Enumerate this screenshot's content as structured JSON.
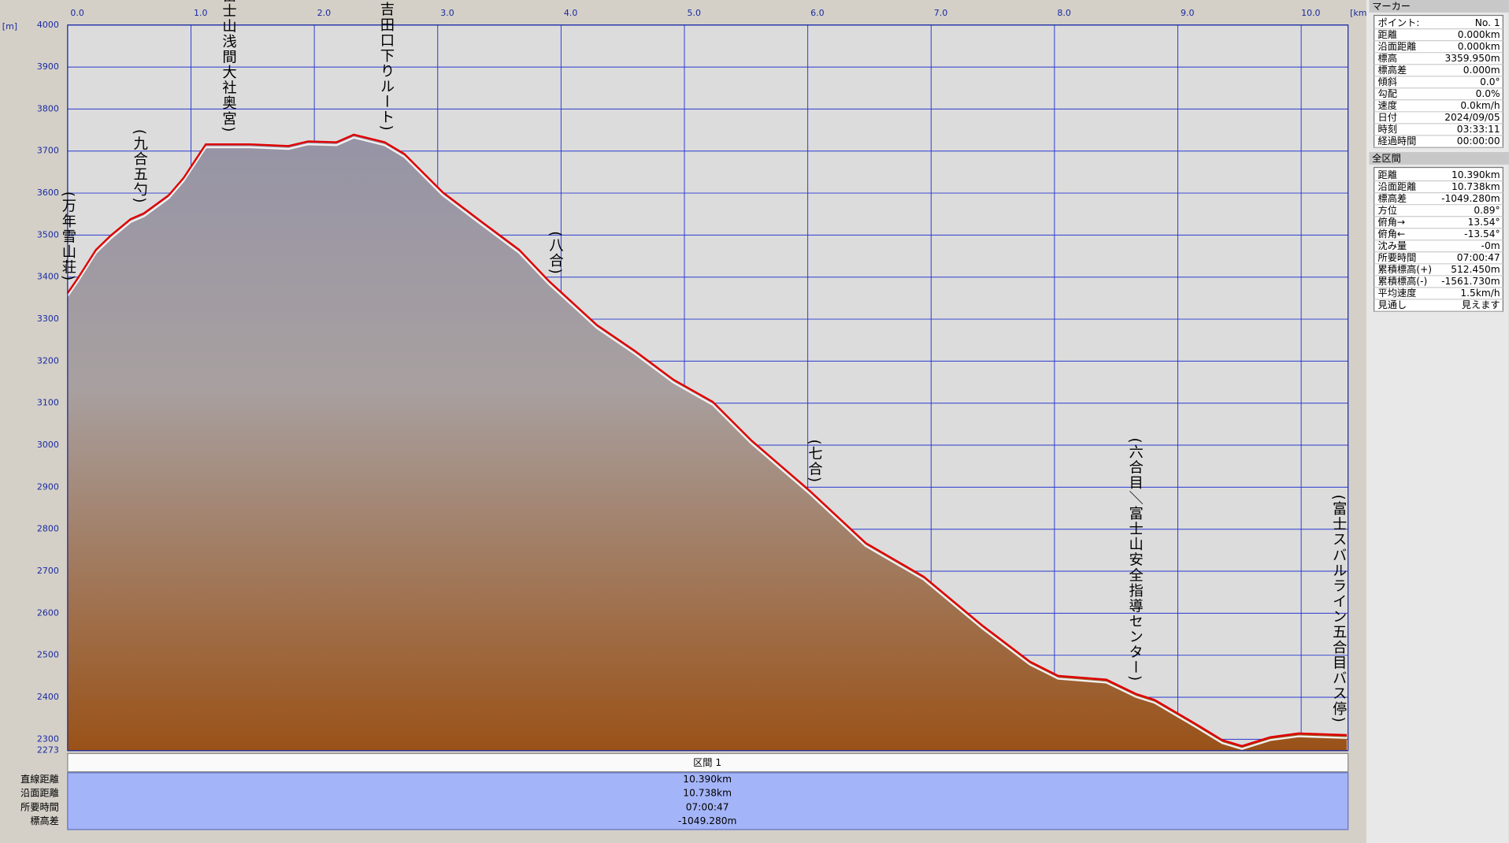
{
  "chart_data": {
    "type": "area",
    "x_label": "[km]",
    "y_label": "[m]",
    "x": [
      0,
      0.08,
      0.23,
      0.35,
      0.51,
      0.62,
      0.82,
      0.94,
      1.12,
      1.25,
      1.48,
      1.79,
      1.95,
      2.18,
      2.32,
      2.57,
      2.73,
      3.04,
      3.35,
      3.66,
      3.9,
      4.29,
      4.6,
      4.91,
      5.23,
      5.54,
      6.01,
      6.47,
      6.94,
      7.41,
      7.8,
      8.03,
      8.42,
      8.66,
      8.81,
      9.13,
      9.36,
      9.52,
      9.75,
      9.98,
      10.37
    ],
    "values": [
      3362,
      3396,
      3465,
      3499,
      3538,
      3552,
      3595,
      3636,
      3716,
      3716,
      3716,
      3712,
      3723,
      3721,
      3739,
      3721,
      3693,
      3602,
      3533,
      3465,
      3391,
      3286,
      3224,
      3156,
      3103,
      3012,
      2893,
      2767,
      2687,
      2572,
      2485,
      2451,
      2442,
      2408,
      2394,
      2339,
      2298,
      2284,
      2305,
      2314,
      2310
    ],
    "color": "#e00000",
    "xlim": [
      0,
      10.38
    ],
    "ylim": [
      2273,
      4000
    ],
    "xticks": [
      {
        "value": 0,
        "label": "0.0"
      },
      {
        "value": 1,
        "label": "1.0"
      },
      {
        "value": 2,
        "label": "2.0"
      },
      {
        "value": 3,
        "label": "3.0"
      },
      {
        "value": 4,
        "label": "4.0"
      },
      {
        "value": 5,
        "label": "5.0"
      },
      {
        "value": 6,
        "label": "6.0"
      },
      {
        "value": 7,
        "label": "7.0"
      },
      {
        "value": 8,
        "label": "8.0"
      },
      {
        "value": 9,
        "label": "9.0"
      },
      {
        "value": 10,
        "label": "10.0"
      }
    ],
    "yticks": [
      2273,
      2300,
      2400,
      2500,
      2600,
      2700,
      2800,
      2900,
      3000,
      3100,
      3200,
      3300,
      3400,
      3500,
      3600,
      3700,
      3800,
      3900,
      4000
    ],
    "grid": true,
    "annotations": [
      {
        "text": "(万年雪山荘)",
        "x": 0
      },
      {
        "text": "(九合五勺)",
        "x": 0.58
      },
      {
        "text": "(富士山浅間大社奥宮)",
        "x": 1.3
      },
      {
        "text": "(吉田口下りルート)",
        "x": 2.58
      },
      {
        "text": "(八合)",
        "x": 3.95
      },
      {
        "text": "(七合)",
        "x": 6.05
      },
      {
        "text": "(六合目＼富士山安全指導センター)",
        "x": 8.65
      },
      {
        "text": "(富士スバルライン五合目バス停)",
        "x": 10.3
      }
    ]
  },
  "marker_panel": {
    "title": "マーカー",
    "rows": [
      [
        "ポイント:",
        "No. 1"
      ],
      [
        "距離",
        "0.000km"
      ],
      [
        "沿面距離",
        "0.000km"
      ],
      [
        "標高",
        "3359.950m"
      ],
      [
        "標高差",
        "0.000m"
      ],
      [
        "傾斜",
        "0.0°"
      ],
      [
        "勾配",
        "0.0%"
      ],
      [
        "速度",
        "0.0km/h"
      ],
      [
        "日付",
        "2024/09/05"
      ],
      [
        "時刻",
        "03:33:11"
      ],
      [
        "経過時間",
        "00:00:00"
      ]
    ]
  },
  "total_panel": {
    "title": "全区間",
    "rows": [
      [
        "距離",
        "10.390km"
      ],
      [
        "沿面距離",
        "10.738km"
      ],
      [
        "標高差",
        "-1049.280m"
      ],
      [
        "方位",
        "0.89°"
      ],
      [
        "俯角→",
        "13.54°"
      ],
      [
        "俯角←",
        "-13.54°"
      ],
      [
        "沈み量",
        "-0m"
      ],
      [
        "所要時間",
        "07:00:47"
      ],
      [
        "累積標高(+)",
        "512.450m"
      ],
      [
        "累積標高(-)",
        "-1561.730m"
      ],
      [
        "平均速度",
        "1.5km/h"
      ],
      [
        "見通し",
        "見えます"
      ]
    ]
  },
  "section_table": {
    "header": "区間 1",
    "rows": [
      [
        "直線距離",
        "10.390km"
      ],
      [
        "沿面距離",
        "10.738km"
      ],
      [
        "所要時間",
        "07:00:47"
      ],
      [
        "標高差",
        "-1049.280m"
      ]
    ]
  }
}
